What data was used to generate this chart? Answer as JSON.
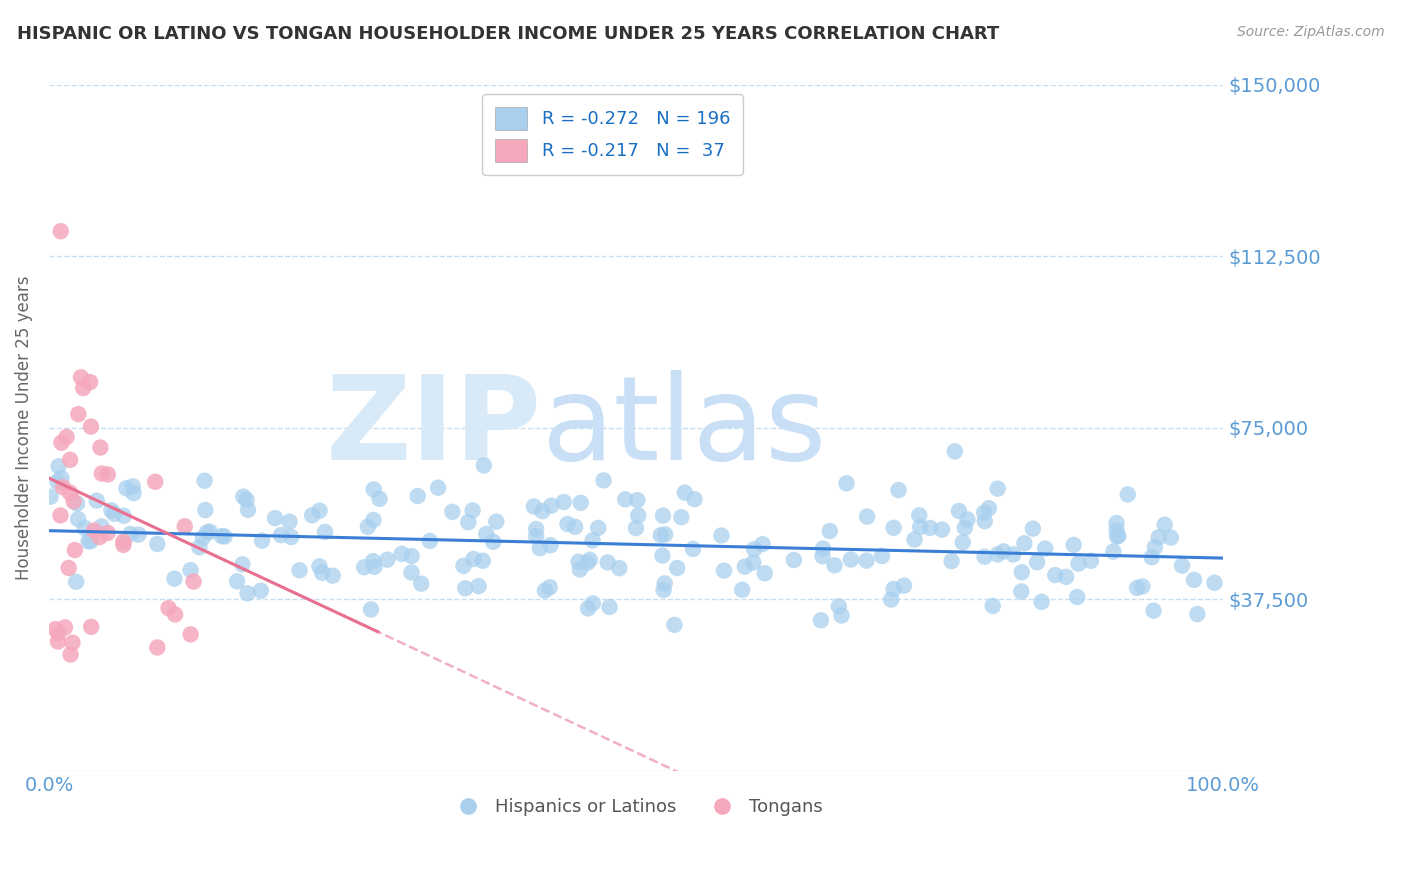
{
  "title": "HISPANIC OR LATINO VS TONGAN HOUSEHOLDER INCOME UNDER 25 YEARS CORRELATION CHART",
  "source": "Source: ZipAtlas.com",
  "ylabel": "Householder Income Under 25 years",
  "xlim": [
    0,
    1.0
  ],
  "ylim": [
    0,
    150000
  ],
  "yticks": [
    0,
    37500,
    75000,
    112500,
    150000
  ],
  "ytick_labels": [
    "",
    "$37,500",
    "$75,000",
    "$112,500",
    "$150,000"
  ],
  "legend_blue_R": "-0.272",
  "legend_blue_N": "196",
  "legend_pink_R": "-0.217",
  "legend_pink_N": "37",
  "blue_scatter_color": "#a8d0ee",
  "pink_scatter_color": "#f5a8bc",
  "trendline_blue_color": "#3a7fd5",
  "trendline_pink_color": "#e87090",
  "trendline_pink_dash_color": "#f0b0c0",
  "title_color": "#333333",
  "yaxis_label_color": "#5b9bd5",
  "xaxis_label_color": "#5b9bd5",
  "watermark_zip_color": "#d8eaf8",
  "watermark_atlas_color": "#c8dff5",
  "background_color": "#ffffff",
  "grid_color": "#c8dff0",
  "N_blue": 196,
  "N_pink": 37,
  "R_blue": -0.272,
  "R_pink": -0.217
}
